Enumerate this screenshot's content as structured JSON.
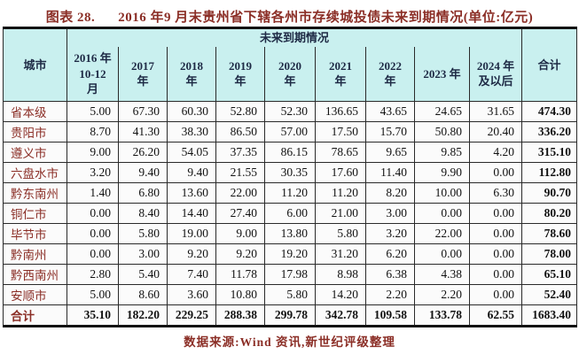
{
  "colors": {
    "accent": "#8b2e26",
    "header_bg": "#c9f0ef",
    "header_text": "#1e2a45",
    "border_color": "#2a2a2a"
  },
  "title": {
    "label": "图表 28.",
    "text": "2016 年9 月末贵州省下辖各州市存续城投债未来到期情况(单位:亿元)"
  },
  "table": {
    "corner_header": "城市",
    "span_header": "未来到期情况",
    "total_col_header": "合计",
    "year_headers": [
      "2016 年\n10-12\n月",
      "2017\n年",
      "2018\n年",
      "2019\n年",
      "2020\n年",
      "2021\n年",
      "2022\n年",
      "2023 年",
      "2024 年\n及以后"
    ],
    "rows": [
      {
        "city": "省本级",
        "values": [
          "5.00",
          "67.30",
          "60.30",
          "52.80",
          "52.30",
          "136.65",
          "43.65",
          "24.65",
          "31.65"
        ],
        "total": "474.30"
      },
      {
        "city": "贵阳市",
        "values": [
          "8.70",
          "41.30",
          "38.30",
          "86.50",
          "57.00",
          "17.50",
          "15.70",
          "50.80",
          "20.40"
        ],
        "total": "336.20"
      },
      {
        "city": "遵义市",
        "values": [
          "9.00",
          "26.20",
          "54.05",
          "37.35",
          "86.15",
          "78.65",
          "9.65",
          "9.85",
          "4.20"
        ],
        "total": "315.10"
      },
      {
        "city": "六盘水市",
        "values": [
          "3.20",
          "9.40",
          "9.40",
          "21.55",
          "30.35",
          "17.60",
          "11.40",
          "9.90",
          "0.00"
        ],
        "total": "112.80"
      },
      {
        "city": "黔东南州",
        "values": [
          "1.40",
          "6.80",
          "13.60",
          "22.00",
          "11.20",
          "11.20",
          "8.20",
          "10.00",
          "6.30"
        ],
        "total": "90.70"
      },
      {
        "city": "铜仁市",
        "values": [
          "0.00",
          "8.40",
          "14.40",
          "27.40",
          "6.00",
          "21.00",
          "3.00",
          "0.00",
          "0.00"
        ],
        "total": "80.20"
      },
      {
        "city": "毕节市",
        "values": [
          "0.00",
          "5.80",
          "19.00",
          "9.00",
          "13.80",
          "5.80",
          "3.20",
          "22.00",
          "0.00"
        ],
        "total": "78.60"
      },
      {
        "city": "黔南州",
        "values": [
          "0.00",
          "3.00",
          "9.20",
          "9.20",
          "19.20",
          "31.20",
          "6.20",
          "0.00",
          "0.00"
        ],
        "total": "78.00"
      },
      {
        "city": "黔西南州",
        "values": [
          "2.80",
          "5.40",
          "7.40",
          "11.78",
          "17.98",
          "8.98",
          "6.38",
          "4.38",
          "0.00"
        ],
        "total": "65.10"
      },
      {
        "city": "安顺市",
        "values": [
          "5.00",
          "8.60",
          "3.60",
          "10.80",
          "5.80",
          "14.20",
          "2.20",
          "2.20",
          "0.00"
        ],
        "total": "52.40"
      }
    ],
    "total_row": {
      "label": "合计",
      "values": [
        "35.10",
        "182.20",
        "229.25",
        "288.38",
        "299.78",
        "342.78",
        "109.58",
        "133.78",
        "62.55"
      ],
      "total": "1683.40"
    }
  },
  "footer": {
    "source_text": "数据来源:Wind 资讯,新世纪评级整理"
  }
}
